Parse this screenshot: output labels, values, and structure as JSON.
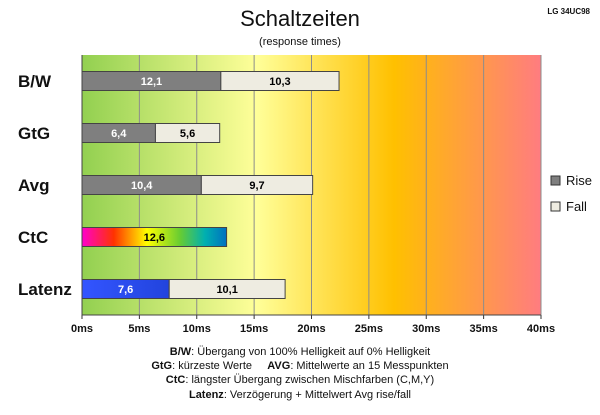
{
  "model": "LG 34UC98",
  "chart_data": {
    "type": "bar",
    "orientation": "horizontal",
    "stacked": true,
    "title": "Schaltzeiten",
    "subtitle": "(response times)",
    "categories": [
      "B/W",
      "GtG",
      "Avg",
      "CtC",
      "Latenz"
    ],
    "series": [
      {
        "name": "Rise",
        "values": [
          12.1,
          6.4,
          10.4,
          12.6,
          7.6
        ],
        "labels": [
          "12,1",
          "6,4",
          "10,4",
          "12,6",
          "7,6"
        ],
        "color": "#7f7f7f"
      },
      {
        "name": "Fall",
        "values": [
          10.3,
          5.6,
          9.7,
          null,
          10.1
        ],
        "labels": [
          "10,3",
          "5,6",
          "9,7",
          "",
          "10,1"
        ],
        "color": "#eeece1"
      }
    ],
    "special_fills": {
      "CtC": "rainbow",
      "Latenz": "blue"
    },
    "xlim": [
      0,
      40
    ],
    "xticks": [
      0,
      5,
      10,
      15,
      20,
      25,
      30,
      35,
      40
    ],
    "xtick_labels": [
      "0ms",
      "5ms",
      "10ms",
      "15ms",
      "20ms",
      "25ms",
      "30ms",
      "35ms",
      "40ms"
    ],
    "grid": true,
    "legend": "right",
    "background_gradient": [
      "#92d050",
      "#ffff99",
      "#ffc000",
      "#ff7c80"
    ]
  },
  "notes": [
    {
      "key": "B/W",
      "text": ":  Übergang von 100% Helligkeit auf 0% Helligkeit"
    },
    {
      "key": "GtG",
      "text": ": kürzeste  Werte",
      "key2": "AVG",
      "text2": ": Mittelwerte  an 15 Messpunkten"
    },
    {
      "key": "CtC",
      "text": ": längster Übergang  zwischen Mischfarben  (C,M,Y)"
    },
    {
      "key": "Latenz",
      "text": ": Verzögerung  + Mittelwert  Avg rise/fall"
    }
  ]
}
